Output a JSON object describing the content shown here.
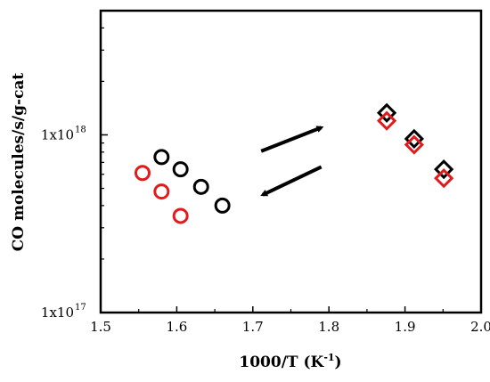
{
  "chart_data": {
    "type": "scatter",
    "xlabel": "1000/T (K",
    "xlabel_sup": "-1",
    "xlabel_close": ")",
    "ylabel": "CO molecules/s/g-cat",
    "x_scale": "linear",
    "y_scale": "log",
    "xlim": [
      1.5,
      2.0
    ],
    "ylim": [
      1e+17,
      5e+18
    ],
    "x_ticks": [
      1.5,
      1.6,
      1.7,
      1.8,
      1.9,
      2.0
    ],
    "x_tick_labels": [
      "1.5",
      "1.6",
      "1.7",
      "1.8",
      "1.9",
      "2.0"
    ],
    "y_ticks": [
      {
        "value": 1e+17,
        "base": "1x10",
        "exp": "17"
      },
      {
        "value": 1e+18,
        "base": "1x10",
        "exp": "18"
      }
    ],
    "grid": false,
    "legend": "none",
    "series": [
      {
        "marker": "circle",
        "color": "#000000",
        "points": [
          [
            1.58,
            7.5e+17
          ],
          [
            1.605,
            6.4e+17
          ],
          [
            1.632,
            5.1e+17
          ],
          [
            1.66,
            4e+17
          ]
        ]
      },
      {
        "marker": "circle",
        "color": "#e31a1c",
        "points": [
          [
            1.555,
            6.1e+17
          ],
          [
            1.58,
            4.8e+17
          ],
          [
            1.605,
            3.5e+17
          ]
        ]
      },
      {
        "marker": "diamond",
        "color": "#000000",
        "points": [
          [
            1.876,
            1.33e+18
          ],
          [
            1.912,
            9.5e+17
          ],
          [
            1.951,
            6.4e+17
          ]
        ]
      },
      {
        "marker": "diamond",
        "color": "#e31a1c",
        "points": [
          [
            1.876,
            1.2e+18
          ],
          [
            1.912,
            8.8e+17
          ],
          [
            1.951,
            5.7e+17
          ]
        ]
      }
    ],
    "annotations": [
      {
        "type": "arrow",
        "direction": "up-right",
        "from": [
          1.711,
          8.1e+17
        ],
        "to": [
          1.79,
          1.1e+18
        ]
      },
      {
        "type": "arrow",
        "direction": "down-left",
        "from": [
          1.79,
          6.6e+17
        ],
        "to": [
          1.713,
          4.6e+17
        ]
      }
    ]
  }
}
